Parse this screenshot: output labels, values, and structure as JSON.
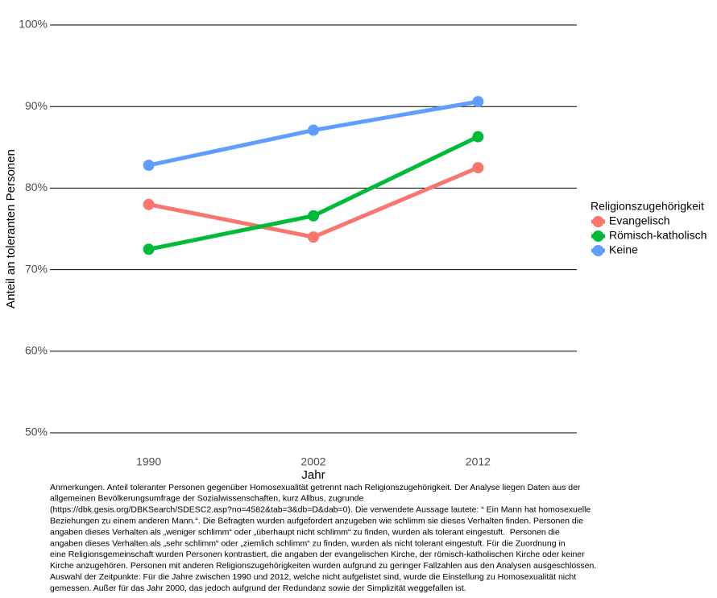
{
  "chart_data": {
    "type": "line",
    "x_label": "Jahr",
    "y_label": "Anteil an toleranten Personen",
    "categories": [
      "1990",
      "2002",
      "2012"
    ],
    "series": [
      {
        "name": "Evangelisch",
        "color": "#F8766D",
        "values": [
          78.0,
          74.0,
          82.5
        ]
      },
      {
        "name": "Römisch-katholisch",
        "color": "#00BA38",
        "values": [
          72.5,
          76.6,
          86.3
        ]
      },
      {
        "name": "Keine",
        "color": "#619CFF",
        "values": [
          82.8,
          87.1,
          90.6
        ]
      }
    ],
    "legend_title": "Religionszugehörigkeit",
    "legend_position": "right",
    "ylim": [
      50,
      100
    ],
    "yticks": [
      {
        "value": 50,
        "label": "50%"
      },
      {
        "value": 60,
        "label": "60%"
      },
      {
        "value": 70,
        "label": "70%"
      },
      {
        "value": 80,
        "label": "80%"
      },
      {
        "value": 90,
        "label": "90%"
      },
      {
        "value": 100,
        "label": "100%"
      }
    ],
    "grid": true,
    "note_lines": [
      "Anmerkungen. Anteil toleranter Personen gegenüber Homosexualität getrennt nach Religionszugehörigkeit. Der Analyse liegen Daten aus der",
      "allgemeinen Bevölkerungsumfrage der Sozialwissenschaften, kurz Allbus, zugrunde",
      "(https://dbk.gesis.org/DBKSearch/SDESC2.asp?no=4582&tab=3&db=D&dab=0). Die verwendete Aussage lautete: “ Ein Mann hat homosexuelle",
      "Beziehungen zu einem anderen Mann.“. Die Befragten wurden aufgefordert anzugeben wie schlimm sie dieses Verhalten finden. Personen die",
      "angaben dieses Verhalten als „weniger schlimm“ oder „überhaupt nicht schlimm“ zu finden, wurden als tolerant eingestuft.  Personen die",
      "angaben dieses Verhalten als „sehr schlimm“ oder „ziemlich schlimm“ zu finden, wurden als nicht tolerant eingestuft. Für die Zuordnung in",
      "eine Religionsgemeinschaft wurden Personen kontrastiert, die angaben der evangelischen Kirche, der römisch-katholischen Kirche oder keiner",
      "Kirche anzugehören. Personen mit anderen Religionszugehörigkeiten wurden aufgrund zu geringer Fallzahlen aus den Analysen ausgeschlossen.",
      "Auswahl der Zeitpunkte: Für die Jahre zwischen 1990 und 2012, welche nicht aufgelistet sind, wurde die Einstellung zu Homosexualität nicht",
      "gemessen. Außer für das Jahr 2000, das jedoch aufgrund der Redundanz sowie der Simplizität weggefallen ist."
    ]
  }
}
